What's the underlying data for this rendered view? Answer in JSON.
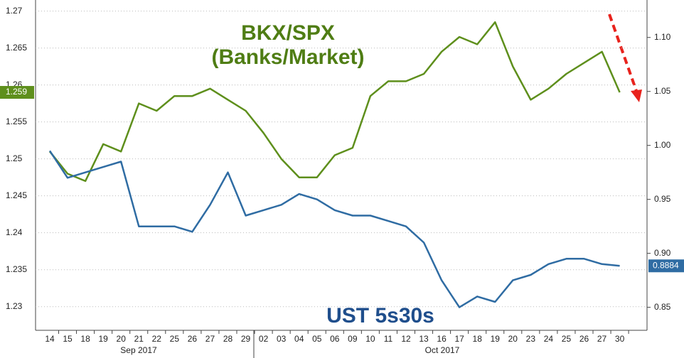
{
  "chart_data": {
    "type": "line",
    "annotations": [
      "BKX/SPX",
      "(Banks/Market)",
      "UST 5s30s"
    ],
    "categories": [
      "14",
      "15",
      "18",
      "19",
      "20",
      "21",
      "22",
      "25",
      "26",
      "27",
      "28",
      "29",
      "02",
      "03",
      "04",
      "05",
      "06",
      "09",
      "10",
      "11",
      "12",
      "13",
      "16",
      "17",
      "18",
      "19",
      "20",
      "23",
      "24",
      "25",
      "26",
      "27",
      "30"
    ],
    "months": [
      "Sep 2017",
      "Oct 2017"
    ],
    "series": [
      {
        "name": "BKX/SPX",
        "color": "#5e8f1c",
        "values": [
          1.251,
          1.248,
          1.247,
          1.252,
          1.251,
          1.2575,
          1.2565,
          1.2585,
          1.2585,
          1.2595,
          1.258,
          1.2565,
          1.2535,
          1.25,
          1.2475,
          1.2475,
          1.2505,
          1.2515,
          1.2585,
          1.2605,
          1.2605,
          1.2615,
          1.2645,
          1.2665,
          1.2655,
          1.2685,
          1.2625,
          1.258,
          1.2595,
          1.2615,
          1.263,
          1.2645,
          1.259
        ]
      },
      {
        "name": "UST 5s30s",
        "color": "#2f6ca3",
        "axis": "y2",
        "values": [
          0.995,
          0.97,
          0.975,
          0.98,
          0.985,
          0.925,
          0.925,
          0.925,
          0.92,
          0.945,
          0.975,
          0.935,
          0.94,
          0.945,
          0.955,
          0.95,
          0.94,
          0.935,
          0.935,
          0.93,
          0.925,
          0.91,
          0.875,
          0.85,
          0.86,
          0.855,
          0.875,
          0.88,
          0.89,
          0.895,
          0.895,
          0.89,
          0.8884
        ]
      }
    ],
    "ylim": [
      1.2268,
      1.2715
    ],
    "yticks": [
      1.23,
      1.235,
      1.24,
      1.245,
      1.25,
      1.255,
      1.26,
      1.265,
      1.27
    ],
    "y2lim": [
      0.8287,
      1.1347
    ],
    "y2ticks": [
      0.85,
      {
        "value": 0.9,
        "label": "0.90"
      },
      0.95,
      {
        "value": 1,
        "label": "1.00"
      },
      1.05,
      {
        "value": 1.1,
        "label": "1.10"
      }
    ],
    "grid": true
  }
}
